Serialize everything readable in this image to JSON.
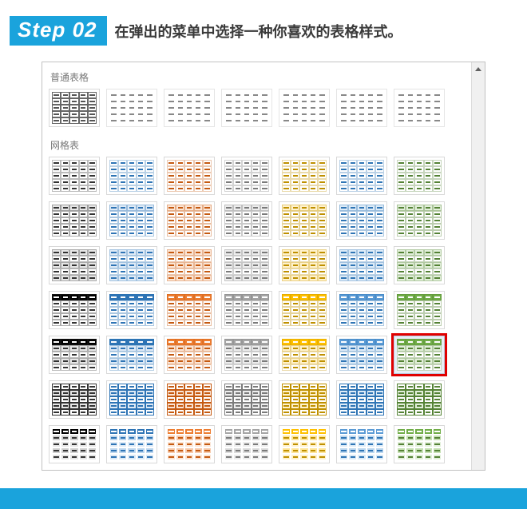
{
  "header": {
    "step_label": "Step 02",
    "instruction": "在弹出的菜单中选择一种你喜欢的表格样式。"
  },
  "categories": [
    {
      "label": "普通表格"
    },
    {
      "label": "网格表"
    }
  ],
  "palette_order": [
    "black",
    "blue",
    "orange",
    "gray",
    "yellow",
    "ltblue",
    "green"
  ],
  "palettes": {
    "black": {
      "line": "#333333",
      "header": "#000000",
      "fill": "#e6e6e6",
      "alt": "#d0d0d0"
    },
    "blue": {
      "line": "#2e74b5",
      "header": "#2e74b5",
      "fill": "#deeaf6",
      "alt": "#bdd6ee"
    },
    "orange": {
      "line": "#c55a11",
      "header": "#ed7d31",
      "fill": "#fbe5d5",
      "alt": "#f7caac"
    },
    "gray": {
      "line": "#7b7b7b",
      "header": "#a5a5a5",
      "fill": "#ededed",
      "alt": "#dbdbdb"
    },
    "yellow": {
      "line": "#bf9000",
      "header": "#ffc000",
      "fill": "#fff2cc",
      "alt": "#fee599"
    },
    "ltblue": {
      "line": "#2f75b5",
      "header": "#5b9bd5",
      "fill": "#ddebf7",
      "alt": "#bdd7ee"
    },
    "green": {
      "line": "#548235",
      "header": "#70ad47",
      "fill": "#e2efda",
      "alt": "#c5e0b3"
    }
  },
  "plain_row": {
    "styles": [
      {
        "kind": "grid_full"
      },
      {
        "kind": "grid_lines_only"
      },
      {
        "kind": "grid_lines_only"
      },
      {
        "kind": "grid_lines_only"
      },
      {
        "kind": "grid_lines_only"
      },
      {
        "kind": "grid_lines_only"
      },
      {
        "kind": "grid_lines_only"
      }
    ]
  },
  "grid_rows": [
    {
      "style": "outline_light"
    },
    {
      "style": "outline_header"
    },
    {
      "style": "banded_light"
    },
    {
      "style": "solid_header_dark"
    },
    {
      "style": "solid_header_banded",
      "selected_index": 6
    },
    {
      "style": "banded_borders"
    },
    {
      "style": "colorful_grid"
    }
  ],
  "selected": {
    "row": 4,
    "col": 6
  }
}
